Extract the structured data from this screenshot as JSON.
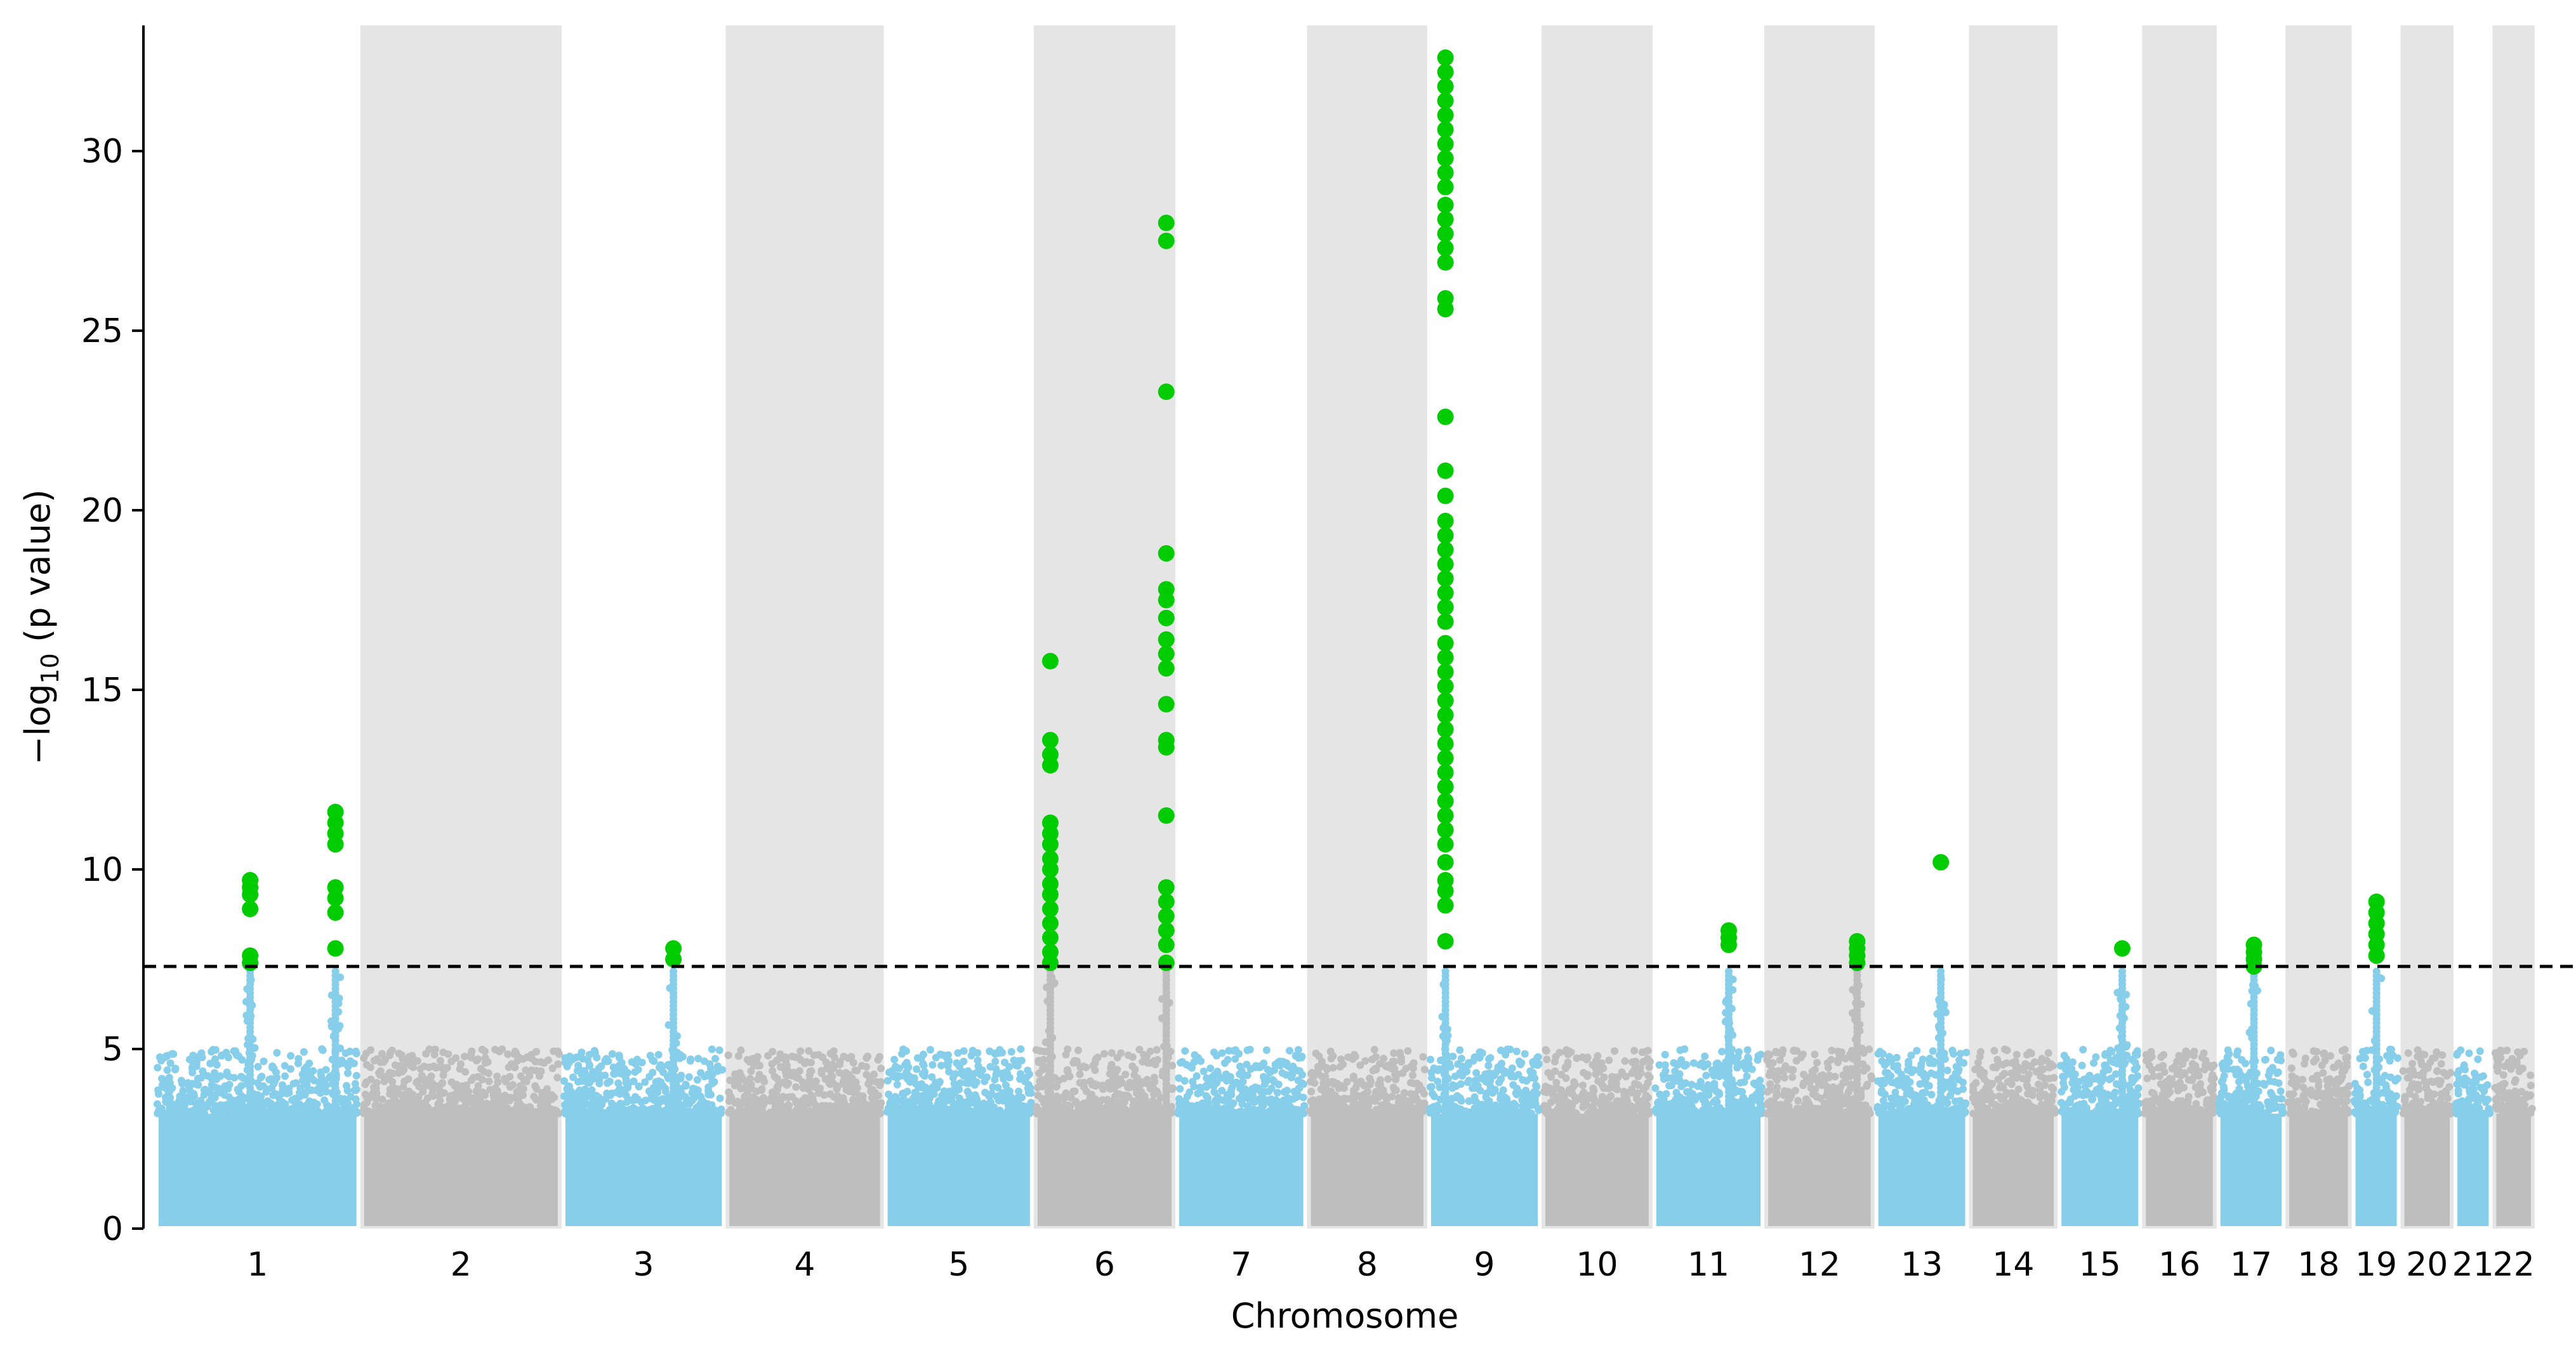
{
  "chart_data": {
    "type": "scatter",
    "subtype": "manhattan",
    "title": "",
    "xlabel": "Chromosome",
    "ylabel_prefix": "−log",
    "ylabel_sub": "10",
    "ylabel_suffix": " (p value)",
    "ylim": [
      0,
      33.5
    ],
    "yticks": [
      0,
      5,
      10,
      15,
      20,
      25,
      30
    ],
    "significance_threshold": 7.3,
    "threshold_style": "dashed",
    "colors": {
      "odd_chromosome": "#87CEEB",
      "even_chromosome": "#BEBEBE",
      "significant": "#00CC00",
      "even_band": "#E5E5E5",
      "threshold_line": "#000000"
    },
    "chromosomes": [
      {
        "label": "1",
        "start": 0,
        "end": 248
      },
      {
        "label": "2",
        "start": 248,
        "end": 491
      },
      {
        "label": "3",
        "start": 491,
        "end": 689
      },
      {
        "label": "4",
        "start": 689,
        "end": 880
      },
      {
        "label": "5",
        "start": 880,
        "end": 1061
      },
      {
        "label": "6",
        "start": 1061,
        "end": 1232
      },
      {
        "label": "7",
        "start": 1232,
        "end": 1391
      },
      {
        "label": "8",
        "start": 1391,
        "end": 1536
      },
      {
        "label": "9",
        "start": 1536,
        "end": 1674
      },
      {
        "label": "10",
        "start": 1674,
        "end": 1808
      },
      {
        "label": "11",
        "start": 1808,
        "end": 1943
      },
      {
        "label": "12",
        "start": 1943,
        "end": 2076
      },
      {
        "label": "13",
        "start": 2076,
        "end": 2190
      },
      {
        "label": "14",
        "start": 2190,
        "end": 2297
      },
      {
        "label": "15",
        "start": 2297,
        "end": 2399
      },
      {
        "label": "16",
        "start": 2399,
        "end": 2489
      },
      {
        "label": "17",
        "start": 2489,
        "end": 2572
      },
      {
        "label": "18",
        "start": 2572,
        "end": 2652
      },
      {
        "label": "19",
        "start": 2652,
        "end": 2711
      },
      {
        "label": "20",
        "start": 2711,
        "end": 2775
      },
      {
        "label": "21",
        "start": 2775,
        "end": 2822
      },
      {
        "label": "22",
        "start": 2822,
        "end": 2873
      }
    ],
    "peak_loci": [
      {
        "chr": "1",
        "pos": 115,
        "max": 9.7
      },
      {
        "chr": "1",
        "pos": 218,
        "max": 11.6
      },
      {
        "chr": "3",
        "pos": 135,
        "max": 7.8
      },
      {
        "chr": "6",
        "pos": 20,
        "max": 15.8
      },
      {
        "chr": "6",
        "pos": 160,
        "max": 28.0
      },
      {
        "chr": "9",
        "pos": 22,
        "max": 32.6
      },
      {
        "chr": "11",
        "pos": 92,
        "max": 8.3
      },
      {
        "chr": "12",
        "pos": 112,
        "max": 8.0
      },
      {
        "chr": "13",
        "pos": 80,
        "max": 10.2
      },
      {
        "chr": "15",
        "pos": 78,
        "max": 7.8
      },
      {
        "chr": "17",
        "pos": 45,
        "max": 7.9
      },
      {
        "chr": "19",
        "pos": 30,
        "max": 9.1
      }
    ],
    "significant_points": [
      {
        "chr": "1",
        "pos": 115,
        "y": 9.7
      },
      {
        "chr": "1",
        "pos": 115,
        "y": 9.5
      },
      {
        "chr": "1",
        "pos": 115,
        "y": 9.3
      },
      {
        "chr": "1",
        "pos": 115,
        "y": 8.9
      },
      {
        "chr": "1",
        "pos": 115,
        "y": 7.6
      },
      {
        "chr": "1",
        "pos": 115,
        "y": 7.4
      },
      {
        "chr": "1",
        "pos": 218,
        "y": 11.6
      },
      {
        "chr": "1",
        "pos": 218,
        "y": 11.3
      },
      {
        "chr": "1",
        "pos": 218,
        "y": 11.0
      },
      {
        "chr": "1",
        "pos": 218,
        "y": 10.7
      },
      {
        "chr": "1",
        "pos": 218,
        "y": 9.5
      },
      {
        "chr": "1",
        "pos": 218,
        "y": 9.2
      },
      {
        "chr": "1",
        "pos": 218,
        "y": 8.8
      },
      {
        "chr": "1",
        "pos": 218,
        "y": 7.8
      },
      {
        "chr": "3",
        "pos": 135,
        "y": 7.8
      },
      {
        "chr": "3",
        "pos": 135,
        "y": 7.5
      },
      {
        "chr": "6",
        "pos": 20,
        "y": 15.8
      },
      {
        "chr": "6",
        "pos": 20,
        "y": 13.6
      },
      {
        "chr": "6",
        "pos": 20,
        "y": 13.2
      },
      {
        "chr": "6",
        "pos": 20,
        "y": 12.9
      },
      {
        "chr": "6",
        "pos": 20,
        "y": 11.3
      },
      {
        "chr": "6",
        "pos": 20,
        "y": 11.0
      },
      {
        "chr": "6",
        "pos": 20,
        "y": 10.7
      },
      {
        "chr": "6",
        "pos": 20,
        "y": 10.3
      },
      {
        "chr": "6",
        "pos": 20,
        "y": 10.0
      },
      {
        "chr": "6",
        "pos": 20,
        "y": 9.6
      },
      {
        "chr": "6",
        "pos": 20,
        "y": 9.3
      },
      {
        "chr": "6",
        "pos": 20,
        "y": 8.9
      },
      {
        "chr": "6",
        "pos": 20,
        "y": 8.5
      },
      {
        "chr": "6",
        "pos": 20,
        "y": 8.1
      },
      {
        "chr": "6",
        "pos": 20,
        "y": 7.7
      },
      {
        "chr": "6",
        "pos": 20,
        "y": 7.4
      },
      {
        "chr": "6",
        "pos": 160,
        "y": 28.0
      },
      {
        "chr": "6",
        "pos": 160,
        "y": 27.5
      },
      {
        "chr": "6",
        "pos": 160,
        "y": 23.3
      },
      {
        "chr": "6",
        "pos": 160,
        "y": 18.8
      },
      {
        "chr": "6",
        "pos": 160,
        "y": 17.8
      },
      {
        "chr": "6",
        "pos": 160,
        "y": 17.5
      },
      {
        "chr": "6",
        "pos": 160,
        "y": 17.0
      },
      {
        "chr": "6",
        "pos": 160,
        "y": 16.4
      },
      {
        "chr": "6",
        "pos": 160,
        "y": 16.0
      },
      {
        "chr": "6",
        "pos": 160,
        "y": 15.6
      },
      {
        "chr": "6",
        "pos": 160,
        "y": 14.6
      },
      {
        "chr": "6",
        "pos": 160,
        "y": 13.6
      },
      {
        "chr": "6",
        "pos": 160,
        "y": 13.4
      },
      {
        "chr": "6",
        "pos": 160,
        "y": 11.5
      },
      {
        "chr": "6",
        "pos": 160,
        "y": 9.5
      },
      {
        "chr": "6",
        "pos": 160,
        "y": 9.1
      },
      {
        "chr": "6",
        "pos": 160,
        "y": 8.7
      },
      {
        "chr": "6",
        "pos": 160,
        "y": 8.3
      },
      {
        "chr": "6",
        "pos": 160,
        "y": 7.9
      },
      {
        "chr": "6",
        "pos": 160,
        "y": 7.4
      },
      {
        "chr": "9",
        "pos": 22,
        "y": 32.6
      },
      {
        "chr": "9",
        "pos": 22,
        "y": 32.2
      },
      {
        "chr": "9",
        "pos": 22,
        "y": 31.8
      },
      {
        "chr": "9",
        "pos": 22,
        "y": 31.4
      },
      {
        "chr": "9",
        "pos": 22,
        "y": 31.0
      },
      {
        "chr": "9",
        "pos": 22,
        "y": 30.6
      },
      {
        "chr": "9",
        "pos": 22,
        "y": 30.2
      },
      {
        "chr": "9",
        "pos": 22,
        "y": 29.8
      },
      {
        "chr": "9",
        "pos": 22,
        "y": 29.4
      },
      {
        "chr": "9",
        "pos": 22,
        "y": 29.0
      },
      {
        "chr": "9",
        "pos": 22,
        "y": 28.5
      },
      {
        "chr": "9",
        "pos": 22,
        "y": 28.1
      },
      {
        "chr": "9",
        "pos": 22,
        "y": 27.7
      },
      {
        "chr": "9",
        "pos": 22,
        "y": 27.3
      },
      {
        "chr": "9",
        "pos": 22,
        "y": 26.9
      },
      {
        "chr": "9",
        "pos": 22,
        "y": 25.9
      },
      {
        "chr": "9",
        "pos": 22,
        "y": 25.6
      },
      {
        "chr": "9",
        "pos": 22,
        "y": 22.6
      },
      {
        "chr": "9",
        "pos": 22,
        "y": 21.1
      },
      {
        "chr": "9",
        "pos": 22,
        "y": 20.4
      },
      {
        "chr": "9",
        "pos": 22,
        "y": 19.7
      },
      {
        "chr": "9",
        "pos": 22,
        "y": 19.3
      },
      {
        "chr": "9",
        "pos": 22,
        "y": 18.9
      },
      {
        "chr": "9",
        "pos": 22,
        "y": 18.5
      },
      {
        "chr": "9",
        "pos": 22,
        "y": 18.1
      },
      {
        "chr": "9",
        "pos": 22,
        "y": 17.7
      },
      {
        "chr": "9",
        "pos": 22,
        "y": 17.3
      },
      {
        "chr": "9",
        "pos": 22,
        "y": 16.9
      },
      {
        "chr": "9",
        "pos": 22,
        "y": 16.3
      },
      {
        "chr": "9",
        "pos": 22,
        "y": 15.9
      },
      {
        "chr": "9",
        "pos": 22,
        "y": 15.5
      },
      {
        "chr": "9",
        "pos": 22,
        "y": 15.1
      },
      {
        "chr": "9",
        "pos": 22,
        "y": 14.7
      },
      {
        "chr": "9",
        "pos": 22,
        "y": 14.3
      },
      {
        "chr": "9",
        "pos": 22,
        "y": 13.9
      },
      {
        "chr": "9",
        "pos": 22,
        "y": 13.5
      },
      {
        "chr": "9",
        "pos": 22,
        "y": 13.1
      },
      {
        "chr": "9",
        "pos": 22,
        "y": 12.7
      },
      {
        "chr": "9",
        "pos": 22,
        "y": 12.3
      },
      {
        "chr": "9",
        "pos": 22,
        "y": 11.9
      },
      {
        "chr": "9",
        "pos": 22,
        "y": 11.5
      },
      {
        "chr": "9",
        "pos": 22,
        "y": 11.1
      },
      {
        "chr": "9",
        "pos": 22,
        "y": 10.7
      },
      {
        "chr": "9",
        "pos": 22,
        "y": 10.2
      },
      {
        "chr": "9",
        "pos": 22,
        "y": 9.7
      },
      {
        "chr": "9",
        "pos": 22,
        "y": 9.4
      },
      {
        "chr": "9",
        "pos": 22,
        "y": 9.0
      },
      {
        "chr": "9",
        "pos": 22,
        "y": 8.0
      },
      {
        "chr": "11",
        "pos": 92,
        "y": 8.3
      },
      {
        "chr": "11",
        "pos": 92,
        "y": 8.1
      },
      {
        "chr": "11",
        "pos": 92,
        "y": 7.9
      },
      {
        "chr": "12",
        "pos": 112,
        "y": 8.0
      },
      {
        "chr": "12",
        "pos": 112,
        "y": 7.8
      },
      {
        "chr": "12",
        "pos": 112,
        "y": 7.6
      },
      {
        "chr": "12",
        "pos": 112,
        "y": 7.4
      },
      {
        "chr": "13",
        "pos": 80,
        "y": 10.2
      },
      {
        "chr": "15",
        "pos": 78,
        "y": 7.8
      },
      {
        "chr": "17",
        "pos": 45,
        "y": 7.9
      },
      {
        "chr": "17",
        "pos": 45,
        "y": 7.7
      },
      {
        "chr": "17",
        "pos": 45,
        "y": 7.5
      },
      {
        "chr": "17",
        "pos": 45,
        "y": 7.3
      },
      {
        "chr": "19",
        "pos": 30,
        "y": 9.1
      },
      {
        "chr": "19",
        "pos": 30,
        "y": 8.8
      },
      {
        "chr": "19",
        "pos": 30,
        "y": 8.5
      },
      {
        "chr": "19",
        "pos": 30,
        "y": 8.2
      },
      {
        "chr": "19",
        "pos": 30,
        "y": 7.9
      },
      {
        "chr": "19",
        "pos": 30,
        "y": 7.6
      }
    ]
  }
}
